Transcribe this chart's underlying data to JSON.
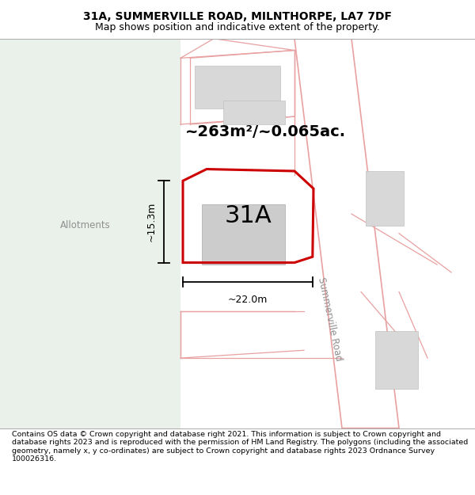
{
  "title": "31A, SUMMERVILLE ROAD, MILNTHORPE, LA7 7DF",
  "subtitle": "Map shows position and indicative extent of the property.",
  "footer": "Contains OS data © Crown copyright and database right 2021. This information is subject to Crown copyright and database rights 2023 and is reproduced with the permission of HM Land Registry. The polygons (including the associated geometry, namely x, y co-ordinates) are subject to Crown copyright and database rights 2023 Ordnance Survey 100026316.",
  "area_label": "~263m²/~0.065ac.",
  "label_31a": "31A",
  "allotments_label": "Allotments",
  "summerville_road_label": "Summerville Road",
  "dim_height": "~15.3m",
  "dim_width": "~22.0m",
  "allotments_color": "#eaf0ea",
  "map_bg": "#f8f8f8",
  "road_fill": "#ffffff",
  "road_line_color": "#e8a0a0",
  "building_color": "#d8d8d8",
  "building_edge": "#c0c0c0",
  "property_border": "#cc0000",
  "text_gray": "#909090",
  "figsize": [
    6.0,
    6.25
  ],
  "dpi": 100,
  "title_fontsize": 10,
  "subtitle_fontsize": 9,
  "footer_fontsize": 6.8
}
